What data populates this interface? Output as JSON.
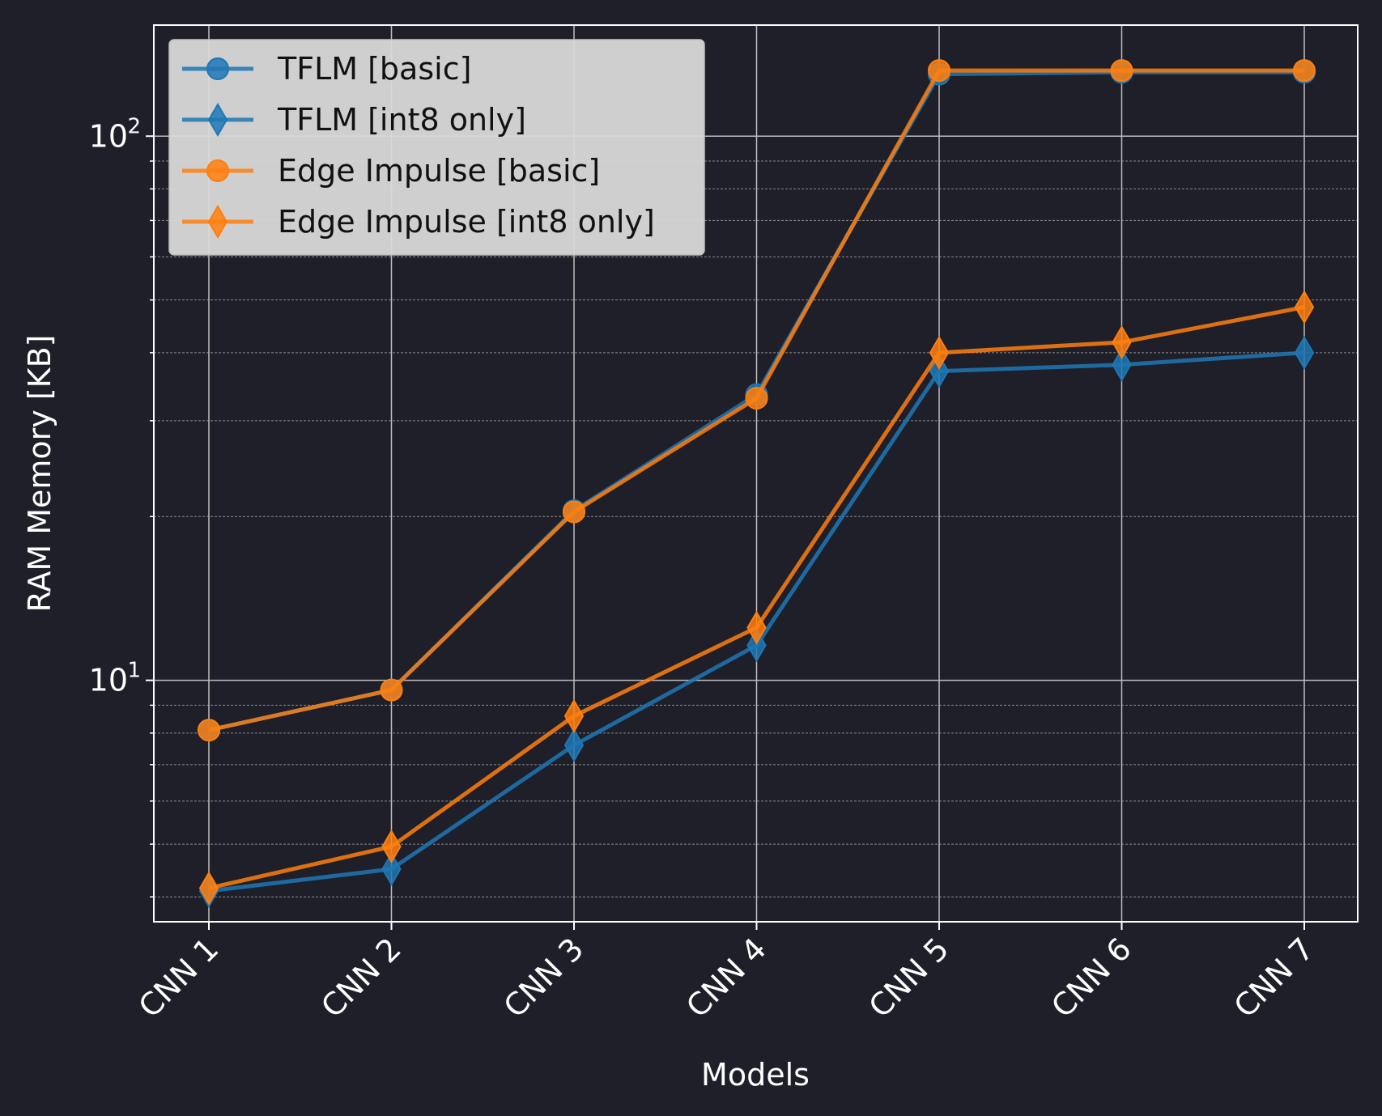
{
  "chart_data": {
    "type": "line",
    "title": "",
    "xlabel": "Models",
    "ylabel": "RAM Memory [KB]",
    "yscale": "log",
    "ylim": [
      3.6,
      160
    ],
    "categories": [
      "CNN 1",
      "CNN 2",
      "CNN 3",
      "CNN 4",
      "CNN 5",
      "CNN 6",
      "CNN 7"
    ],
    "y_ticks": [
      {
        "value": 10,
        "base": "10",
        "exp": "1"
      },
      {
        "value": 100,
        "base": "10",
        "exp": "2"
      }
    ],
    "grid": true,
    "legend_position": "top-left",
    "series": [
      {
        "name": "TFLM [basic]",
        "marker": "circle",
        "color": "#1f77b4",
        "values": [
          8.1,
          9.6,
          20.5,
          33.5,
          130,
          131,
          131
        ]
      },
      {
        "name": "TFLM [int8 only]",
        "marker": "diamond",
        "color": "#1f77b4",
        "values": [
          4.1,
          4.5,
          7.6,
          11.6,
          37.0,
          38.0,
          40.0
        ]
      },
      {
        "name": "Edge Impulse [basic]",
        "marker": "circle",
        "color": "#ff7f0e",
        "values": [
          8.1,
          9.6,
          20.4,
          33.0,
          132,
          132,
          132
        ]
      },
      {
        "name": "Edge Impulse [int8 only]",
        "marker": "diamond",
        "color": "#ff7f0e",
        "values": [
          4.15,
          4.95,
          8.6,
          12.5,
          40.0,
          41.8,
          48.5
        ]
      }
    ]
  }
}
